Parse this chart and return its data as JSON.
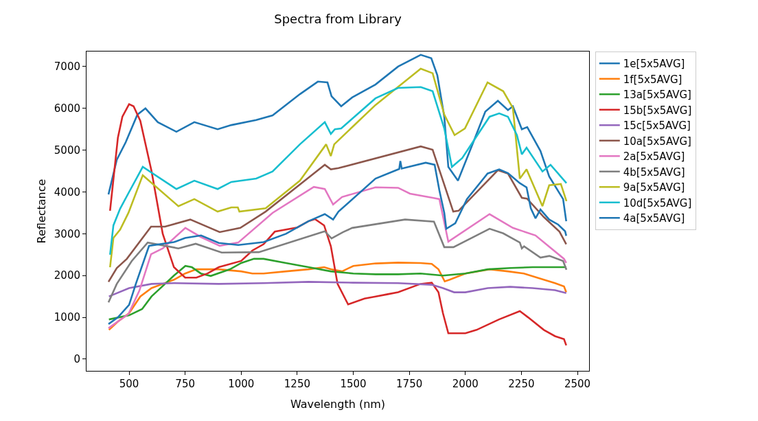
{
  "chart_data": {
    "type": "line",
    "title": "Spectra from Library",
    "xlabel": "Wavelength (nm)",
    "ylabel": "Reflectance",
    "xlim": [
      310,
      2552
    ],
    "ylim": [
      -280,
      7360
    ],
    "xticks": [
      500,
      750,
      1000,
      1250,
      1500,
      1750,
      2000,
      2250,
      2500
    ],
    "yticks": [
      0,
      1000,
      2000,
      3000,
      4000,
      5000,
      6000,
      7000
    ],
    "grid": false,
    "legend": "top right",
    "line_style": "solid",
    "marker": "none",
    "series": [
      {
        "name": "1e[5x5AVG]",
        "color": "#1f77b4",
        "x": [
          408,
          445,
          485,
          537,
          573,
          628,
          711,
          791,
          895,
          956,
          1067,
          1140,
          1262,
          1342,
          1385,
          1403,
          1446,
          1495,
          1599,
          1700,
          1801,
          1848,
          1875,
          1906,
          1924,
          1967,
          2028,
          2089,
          2145,
          2190,
          2212,
          2252,
          2276,
          2335,
          2374,
          2436,
          2450
        ],
        "values": [
          3940,
          4770,
          5190,
          5850,
          6000,
          5670,
          5440,
          5670,
          5500,
          5600,
          5720,
          5830,
          6340,
          6640,
          6620,
          6290,
          6050,
          6260,
          6570,
          7000,
          7280,
          7200,
          6790,
          5800,
          4600,
          4270,
          5090,
          5920,
          6180,
          5960,
          6050,
          5500,
          5550,
          4980,
          4370,
          3830,
          3300
        ]
      },
      {
        "name": "1f[5x5AVG]",
        "color": "#ff7f0e",
        "x": [
          410,
          450,
          500,
          550,
          600,
          650,
          700,
          750,
          800,
          900,
          1000,
          1050,
          1100,
          1200,
          1300,
          1370,
          1400,
          1450,
          1500,
          1600,
          1700,
          1800,
          1850,
          1880,
          1908,
          1930,
          2000,
          2108,
          2190,
          2261,
          2350,
          2400,
          2440,
          2450
        ],
        "values": [
          700,
          900,
          1100,
          1500,
          1700,
          1800,
          1900,
          2050,
          2150,
          2150,
          2100,
          2050,
          2050,
          2100,
          2150,
          2200,
          2150,
          2100,
          2230,
          2290,
          2310,
          2300,
          2280,
          2150,
          1860,
          1900,
          2050,
          2150,
          2100,
          2050,
          1900,
          1820,
          1740,
          1600
        ]
      },
      {
        "name": "13a[5x5AVG]",
        "color": "#2ca02c",
        "x": [
          410,
          500,
          558,
          600,
          628,
          700,
          751,
          780,
          820,
          864,
          950,
          1000,
          1057,
          1100,
          1200,
          1300,
          1400,
          1500,
          1600,
          1700,
          1800,
          1900,
          2000,
          2100,
          2200,
          2300,
          2400,
          2450
        ],
        "values": [
          950,
          1050,
          1200,
          1500,
          1640,
          2000,
          2230,
          2200,
          2050,
          1990,
          2150,
          2300,
          2400,
          2400,
          2300,
          2200,
          2100,
          2050,
          2030,
          2030,
          2050,
          2000,
          2050,
          2150,
          2180,
          2200,
          2200,
          2200
        ]
      },
      {
        "name": "15b[5x5AVG]",
        "color": "#d62728",
        "x": [
          415,
          430,
          450,
          470,
          500,
          520,
          550,
          600,
          650,
          700,
          750,
          800,
          850,
          900,
          1000,
          1050,
          1100,
          1150,
          1250,
          1300,
          1330,
          1370,
          1400,
          1430,
          1477,
          1550,
          1600,
          1650,
          1700,
          1800,
          1850,
          1880,
          1900,
          1924,
          2000,
          2050,
          2150,
          2243,
          2280,
          2350,
          2400,
          2440,
          2450
        ],
        "values": [
          3550,
          4300,
          5300,
          5800,
          6100,
          6050,
          5700,
          4500,
          3000,
          2200,
          1950,
          1950,
          2050,
          2200,
          2350,
          2600,
          2750,
          3050,
          3150,
          3300,
          3350,
          3200,
          2700,
          1800,
          1310,
          1450,
          1500,
          1550,
          1600,
          1800,
          1830,
          1600,
          1100,
          620,
          620,
          700,
          950,
          1150,
          1000,
          700,
          550,
          480,
          330
        ]
      },
      {
        "name": "15c[5x5AVG]",
        "color": "#9467bd",
        "x": [
          410,
          500,
          600,
          700,
          900,
          1100,
          1300,
          1500,
          1700,
          1850,
          1900,
          1950,
          2000,
          2100,
          2200,
          2300,
          2400,
          2450
        ],
        "values": [
          1500,
          1700,
          1800,
          1820,
          1800,
          1820,
          1850,
          1830,
          1820,
          1780,
          1700,
          1600,
          1600,
          1700,
          1730,
          1700,
          1650,
          1580
        ]
      },
      {
        "name": "10a[5x5AVG]",
        "color": "#8c564b",
        "x": [
          408,
          445,
          490,
          598,
          660,
          773,
          904,
          996,
          1109,
          1373,
          1400,
          1434,
          1801,
          1854,
          1946,
          1970,
          2145,
          2190,
          2252,
          2275,
          2350,
          2420,
          2450
        ],
        "values": [
          1850,
          2180,
          2400,
          3170,
          3170,
          3340,
          3040,
          3140,
          3530,
          4650,
          4540,
          4570,
          5090,
          5010,
          3530,
          3550,
          4520,
          4440,
          3860,
          3840,
          3400,
          3050,
          2750
        ]
      },
      {
        "name": "2a[5x5AVG]",
        "color": "#e377c2",
        "x": [
          408,
          497,
          546,
          598,
          650,
          751,
          821,
          904,
          987,
          1140,
          1324,
          1373,
          1410,
          1450,
          1599,
          1700,
          1753,
          1854,
          1884,
          1924,
          2108,
          2212,
          2313,
          2440,
          2450
        ],
        "values": [
          740,
          1080,
          1640,
          2510,
          2650,
          3140,
          2920,
          2710,
          2790,
          3500,
          4120,
          4070,
          3700,
          3880,
          4110,
          4100,
          3960,
          3860,
          3830,
          2810,
          3470,
          3140,
          2960,
          2400,
          2300
        ]
      },
      {
        "name": "4b[5x5AVG]",
        "color": "#7f7f7f",
        "x": [
          408,
          445,
          512,
          583,
          720,
          797,
          913,
          1079,
          1373,
          1403,
          1455,
          1495,
          1731,
          1860,
          1906,
          1947,
          2108,
          2169,
          2243,
          2252,
          2262,
          2335,
          2375,
          2436,
          2451
        ],
        "values": [
          1360,
          1800,
          2350,
          2790,
          2650,
          2760,
          2550,
          2560,
          3060,
          2890,
          3040,
          3140,
          3340,
          3290,
          2680,
          2680,
          3120,
          3010,
          2790,
          2650,
          2700,
          2430,
          2470,
          2350,
          2140
        ]
      },
      {
        "name": "9a[5x5AVG]",
        "color": "#bcbd22",
        "x": [
          415,
          430,
          460,
          497,
          561,
          720,
          791,
          895,
          956,
          985,
          992,
          1109,
          1262,
          1379,
          1400,
          1415,
          1599,
          1801,
          1854,
          1906,
          1952,
          1998,
          2099,
          2169,
          2212,
          2243,
          2273,
          2344,
          2374,
          2426,
          2451
        ],
        "values": [
          2200,
          2900,
          3100,
          3500,
          4400,
          3660,
          3830,
          3530,
          3630,
          3630,
          3530,
          3610,
          4270,
          5140,
          4860,
          5140,
          6080,
          6950,
          6840,
          5850,
          5360,
          5520,
          6620,
          6410,
          6010,
          4320,
          4540,
          3660,
          4160,
          4190,
          3780
        ]
      },
      {
        "name": "10d[5x5AVG]",
        "color": "#17becf",
        "x": [
          415,
          430,
          460,
          500,
          561,
          711,
          791,
          895,
          956,
          1067,
          1140,
          1262,
          1373,
          1400,
          1418,
          1446,
          1599,
          1700,
          1801,
          1854,
          1906,
          1940,
          1986,
          2108,
          2151,
          2190,
          2230,
          2252,
          2273,
          2344,
          2380,
          2414,
          2451
        ],
        "values": [
          2500,
          3200,
          3600,
          4000,
          4600,
          4070,
          4270,
          4070,
          4240,
          4320,
          4490,
          5140,
          5670,
          5390,
          5500,
          5520,
          6240,
          6490,
          6510,
          6410,
          5520,
          4600,
          4810,
          5800,
          5880,
          5800,
          5360,
          4900,
          5060,
          4490,
          4650,
          4440,
          4210
        ]
      },
      {
        "name": "4a[5x5AVG]",
        "color": "#1f77b4",
        "x": [
          408,
          450,
          500,
          530,
          589,
          700,
          750,
          821,
          900,
          987,
          1100,
          1200,
          1300,
          1373,
          1410,
          1434,
          1599,
          1705,
          1710,
          1716,
          1823,
          1863,
          1884,
          1906,
          1915,
          1955,
          2007,
          2099,
          2151,
          2190,
          2243,
          2273,
          2292,
          2313,
          2335,
          2374,
          2414,
          2445,
          2450
        ],
        "values": [
          840,
          1000,
          1300,
          1800,
          2710,
          2800,
          2900,
          2960,
          2780,
          2730,
          2800,
          3000,
          3300,
          3470,
          3340,
          3530,
          4320,
          4550,
          4740,
          4560,
          4700,
          4650,
          4040,
          3500,
          3120,
          3250,
          3830,
          4440,
          4540,
          4450,
          4210,
          4110,
          3610,
          3370,
          3580,
          3340,
          3220,
          3060,
          2950
        ]
      }
    ]
  }
}
